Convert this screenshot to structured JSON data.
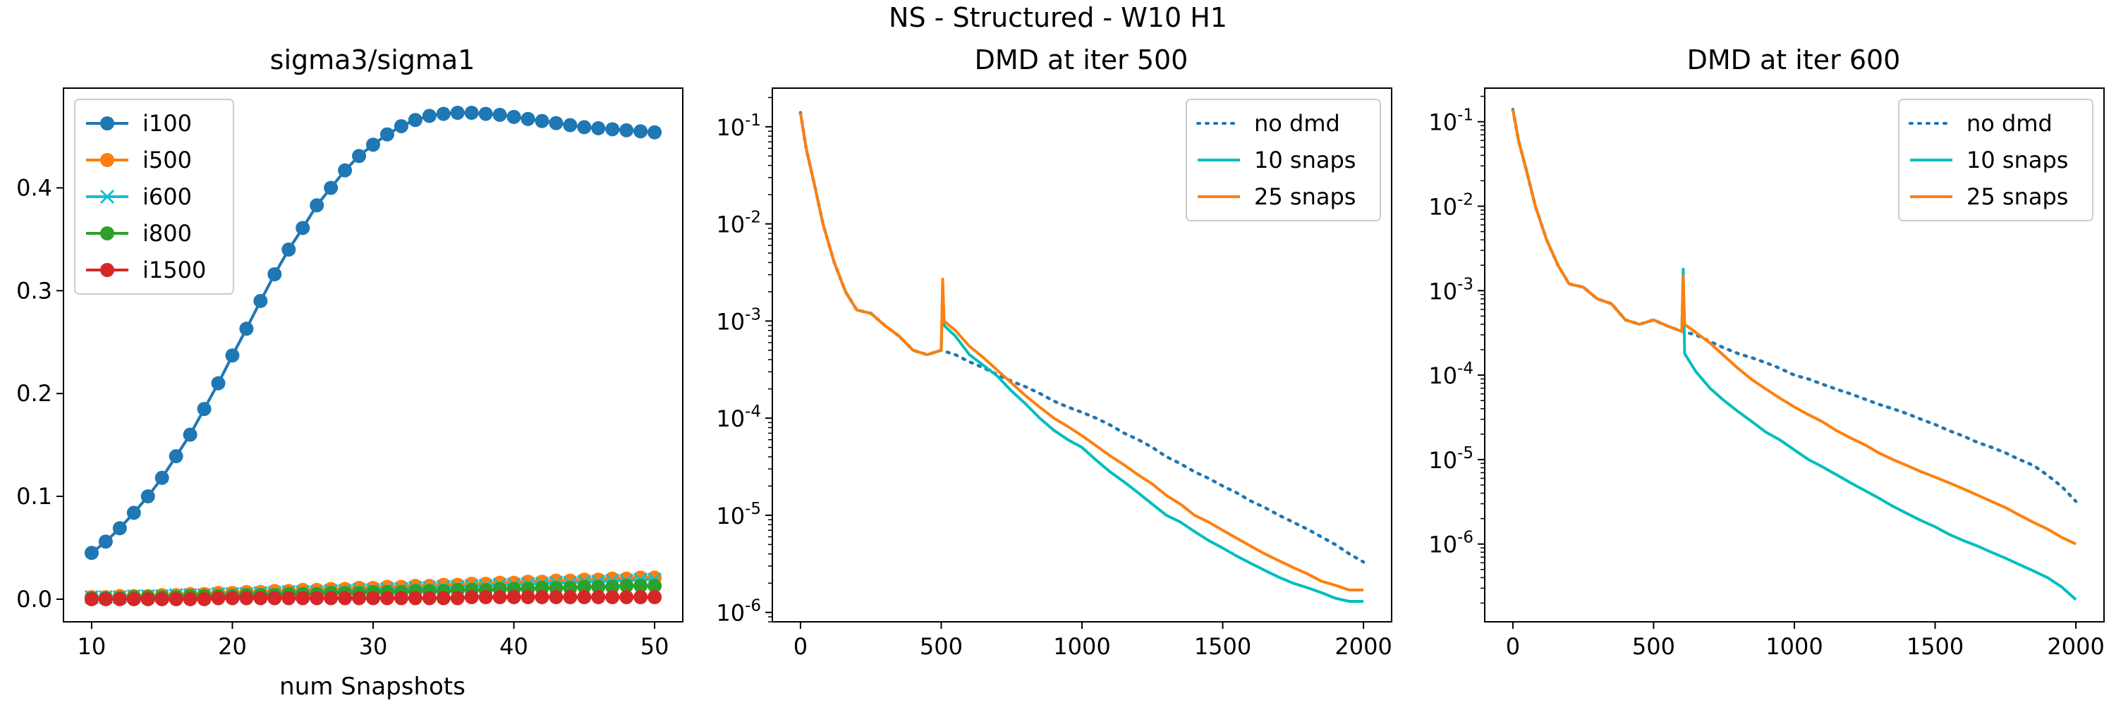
{
  "figure": {
    "suptitle": "NS - Structured - W10 H1"
  },
  "colors": {
    "blue": "#1f77b4",
    "orange": "#ff7f0e",
    "cyan": "#17becf",
    "green": "#2ca02c",
    "red": "#d62728",
    "teal": "#00bebe"
  },
  "chart_data": [
    {
      "type": "line",
      "title": "sigma3/sigma1",
      "xlabel": "num Snapshots",
      "ylabel": "",
      "xlim": [
        8,
        52
      ],
      "ylim": [
        -0.022,
        0.497
      ],
      "xticks": [
        10,
        20,
        30,
        40,
        50
      ],
      "yticks": [
        0.0,
        0.1,
        0.2,
        0.3,
        0.4
      ],
      "grid": false,
      "legend_position": "top-left",
      "x": [
        10,
        11,
        12,
        13,
        14,
        15,
        16,
        17,
        18,
        19,
        20,
        21,
        22,
        23,
        24,
        25,
        26,
        27,
        28,
        29,
        30,
        31,
        32,
        33,
        34,
        35,
        36,
        37,
        38,
        39,
        40,
        41,
        42,
        43,
        44,
        45,
        46,
        47,
        48,
        49,
        50
      ],
      "series": [
        {
          "name": "i100",
          "color": "blue",
          "marker": "circle",
          "values": [
            0.045,
            0.056,
            0.069,
            0.084,
            0.1,
            0.118,
            0.139,
            0.16,
            0.185,
            0.21,
            0.237,
            0.263,
            0.29,
            0.316,
            0.34,
            0.361,
            0.383,
            0.4,
            0.417,
            0.431,
            0.442,
            0.452,
            0.46,
            0.466,
            0.47,
            0.472,
            0.473,
            0.473,
            0.472,
            0.471,
            0.469,
            0.467,
            0.465,
            0.463,
            0.461,
            0.459,
            0.458,
            0.457,
            0.456,
            0.455,
            0.454
          ]
        },
        {
          "name": "i500",
          "color": "orange",
          "marker": "circle",
          "values": [
            0.002,
            0.002,
            0.003,
            0.003,
            0.003,
            0.004,
            0.004,
            0.005,
            0.005,
            0.006,
            0.006,
            0.007,
            0.007,
            0.008,
            0.008,
            0.009,
            0.009,
            0.01,
            0.01,
            0.011,
            0.011,
            0.012,
            0.012,
            0.013,
            0.013,
            0.014,
            0.014,
            0.015,
            0.015,
            0.016,
            0.016,
            0.017,
            0.017,
            0.018,
            0.018,
            0.019,
            0.019,
            0.02,
            0.02,
            0.021,
            0.021
          ]
        },
        {
          "name": "i600",
          "color": "cyan",
          "marker": "x",
          "values": [
            0.002,
            0.002,
            0.002,
            0.003,
            0.003,
            0.003,
            0.004,
            0.004,
            0.004,
            0.005,
            0.005,
            0.005,
            0.006,
            0.006,
            0.007,
            0.007,
            0.007,
            0.008,
            0.008,
            0.009,
            0.009,
            0.01,
            0.01,
            0.011,
            0.011,
            0.012,
            0.012,
            0.013,
            0.013,
            0.014,
            0.014,
            0.015,
            0.015,
            0.016,
            0.016,
            0.017,
            0.017,
            0.018,
            0.018,
            0.019,
            0.019
          ]
        },
        {
          "name": "i800",
          "color": "green",
          "marker": "circle",
          "values": [
            0.001,
            0.001,
            0.001,
            0.002,
            0.002,
            0.002,
            0.002,
            0.003,
            0.003,
            0.003,
            0.003,
            0.004,
            0.004,
            0.004,
            0.005,
            0.005,
            0.005,
            0.006,
            0.006,
            0.006,
            0.007,
            0.007,
            0.007,
            0.008,
            0.008,
            0.008,
            0.009,
            0.009,
            0.009,
            0.01,
            0.01,
            0.01,
            0.011,
            0.011,
            0.011,
            0.012,
            0.012,
            0.012,
            0.013,
            0.013,
            0.013
          ]
        },
        {
          "name": "i1500",
          "color": "red",
          "marker": "circle",
          "values": [
            0.0,
            0.0,
            0.0,
            0.0,
            0.0,
            0.0,
            0.0,
            0.0,
            0.0,
            0.001,
            0.001,
            0.001,
            0.001,
            0.001,
            0.001,
            0.001,
            0.001,
            0.001,
            0.001,
            0.001,
            0.001,
            0.001,
            0.001,
            0.001,
            0.001,
            0.001,
            0.001,
            0.002,
            0.002,
            0.002,
            0.002,
            0.002,
            0.002,
            0.002,
            0.002,
            0.002,
            0.002,
            0.002,
            0.002,
            0.002,
            0.002
          ]
        }
      ]
    },
    {
      "type": "line",
      "title": "DMD at iter 500",
      "xlabel": "",
      "ylabel": "",
      "xlim": [
        -100,
        2100
      ],
      "ylim": [
        8e-07,
        0.25
      ],
      "yscale": "log",
      "xticks": [
        0,
        500,
        1000,
        1500,
        2000
      ],
      "yticks": [
        {
          "base": "10",
          "exp": "-1",
          "value": 0.1
        },
        {
          "base": "10",
          "exp": "-2",
          "value": 0.01
        },
        {
          "base": "10",
          "exp": "-3",
          "value": 0.001
        },
        {
          "base": "10",
          "exp": "-4",
          "value": 0.0001
        },
        {
          "base": "10",
          "exp": "-5",
          "value": 1e-05
        },
        {
          "base": "10",
          "exp": "-6",
          "value": 1e-06
        }
      ],
      "grid": false,
      "legend_position": "top-right",
      "series": [
        {
          "name": "no dmd",
          "color": "blue",
          "style": "dotted",
          "x": [
            0,
            20,
            50,
            80,
            120,
            160,
            200,
            250,
            300,
            350,
            400,
            450,
            500,
            550,
            600,
            650,
            700,
            750,
            800,
            850,
            900,
            950,
            1000,
            1050,
            1100,
            1150,
            1200,
            1250,
            1300,
            1350,
            1400,
            1450,
            1500,
            1550,
            1600,
            1650,
            1700,
            1750,
            1800,
            1850,
            1900,
            1950,
            2000
          ],
          "y": [
            0.14,
            0.06,
            0.025,
            0.01,
            0.004,
            0.002,
            0.0013,
            0.0012,
            0.0009,
            0.0007,
            0.0005,
            0.00045,
            0.0005,
            0.00045,
            0.00038,
            0.00033,
            0.00028,
            0.00024,
            0.00021,
            0.00018,
            0.00015,
            0.00013,
            0.000115,
            0.0001,
            8.5e-05,
            7e-05,
            6e-05,
            5e-05,
            4e-05,
            3.4e-05,
            2.8e-05,
            2.4e-05,
            2e-05,
            1.7e-05,
            1.4e-05,
            1.2e-05,
            1e-05,
            8.5e-06,
            7.2e-06,
            6e-06,
            5e-06,
            4e-06,
            3.3e-06
          ]
        },
        {
          "name": "10 snaps",
          "color": "teal",
          "style": "solid",
          "x": [
            0,
            20,
            50,
            80,
            120,
            160,
            200,
            250,
            300,
            350,
            400,
            450,
            500,
            505,
            510,
            550,
            600,
            650,
            700,
            750,
            800,
            850,
            900,
            950,
            1000,
            1050,
            1100,
            1150,
            1200,
            1250,
            1300,
            1350,
            1400,
            1450,
            1500,
            1550,
            1600,
            1650,
            1700,
            1750,
            1800,
            1850,
            1900,
            1950,
            2000
          ],
          "y": [
            0.14,
            0.06,
            0.025,
            0.01,
            0.004,
            0.002,
            0.0013,
            0.0012,
            0.0009,
            0.0007,
            0.0005,
            0.00045,
            0.0005,
            0.0025,
            0.0009,
            0.0007,
            0.00045,
            0.00035,
            0.00027,
            0.00019,
            0.00014,
            0.0001,
            7.5e-05,
            6e-05,
            5e-05,
            3.7e-05,
            2.8e-05,
            2.2e-05,
            1.7e-05,
            1.3e-05,
            1e-05,
            8.5e-06,
            6.8e-06,
            5.5e-06,
            4.6e-06,
            3.8e-06,
            3.2e-06,
            2.7e-06,
            2.3e-06,
            2e-06,
            1.8e-06,
            1.6e-06,
            1.4e-06,
            1.3e-06,
            1.3e-06
          ]
        },
        {
          "name": "25 snaps",
          "color": "orange",
          "style": "solid",
          "x": [
            0,
            20,
            50,
            80,
            120,
            160,
            200,
            250,
            300,
            350,
            400,
            450,
            500,
            505,
            510,
            550,
            600,
            650,
            700,
            750,
            800,
            850,
            900,
            950,
            1000,
            1050,
            1100,
            1150,
            1200,
            1250,
            1300,
            1350,
            1400,
            1450,
            1500,
            1550,
            1600,
            1650,
            1700,
            1750,
            1800,
            1850,
            1900,
            1950,
            2000
          ],
          "y": [
            0.14,
            0.06,
            0.025,
            0.01,
            0.004,
            0.002,
            0.0013,
            0.0012,
            0.0009,
            0.0007,
            0.0005,
            0.00045,
            0.0005,
            0.0027,
            0.001,
            0.0008,
            0.00055,
            0.00042,
            0.00031,
            0.00023,
            0.00017,
            0.00013,
            0.0001,
            8.2e-05,
            6.6e-05,
            5.2e-05,
            4.1e-05,
            3.3e-05,
            2.6e-05,
            2.1e-05,
            1.6e-05,
            1.3e-05,
            1e-05,
            8.5e-06,
            7e-06,
            5.8e-06,
            4.8e-06,
            4e-06,
            3.4e-06,
            2.9e-06,
            2.5e-06,
            2.1e-06,
            1.9e-06,
            1.7e-06,
            1.7e-06
          ]
        }
      ]
    },
    {
      "type": "line",
      "title": "DMD at iter 600",
      "xlabel": "",
      "ylabel": "",
      "xlim": [
        -100,
        2100
      ],
      "ylim": [
        1.2e-07,
        0.25
      ],
      "yscale": "log",
      "xticks": [
        0,
        500,
        1000,
        1500,
        2000
      ],
      "yticks": [
        {
          "base": "10",
          "exp": "-1",
          "value": 0.1
        },
        {
          "base": "10",
          "exp": "-2",
          "value": 0.01
        },
        {
          "base": "10",
          "exp": "-3",
          "value": 0.001
        },
        {
          "base": "10",
          "exp": "-4",
          "value": 0.0001
        },
        {
          "base": "10",
          "exp": "-5",
          "value": 1e-05
        },
        {
          "base": "10",
          "exp": "-6",
          "value": 1e-06
        }
      ],
      "grid": false,
      "legend_position": "top-right",
      "series": [
        {
          "name": "no dmd",
          "color": "blue",
          "style": "dotted",
          "x": [
            0,
            20,
            50,
            80,
            120,
            160,
            200,
            250,
            300,
            350,
            400,
            450,
            500,
            550,
            600,
            650,
            700,
            750,
            800,
            850,
            900,
            950,
            1000,
            1050,
            1100,
            1150,
            1200,
            1250,
            1300,
            1350,
            1400,
            1450,
            1500,
            1550,
            1600,
            1650,
            1700,
            1750,
            1800,
            1850,
            1900,
            1950,
            2000
          ],
          "y": [
            0.14,
            0.06,
            0.025,
            0.01,
            0.004,
            0.002,
            0.0012,
            0.0011,
            0.0008,
            0.0007,
            0.00045,
            0.0004,
            0.00045,
            0.00038,
            0.00033,
            0.0003,
            0.00025,
            0.00021,
            0.00018,
            0.00016,
            0.00014,
            0.00012,
            0.0001,
            9e-05,
            7.8e-05,
            6.8e-05,
            6e-05,
            5.2e-05,
            4.5e-05,
            4e-05,
            3.5e-05,
            3e-05,
            2.6e-05,
            2.2e-05,
            1.9e-05,
            1.6e-05,
            1.4e-05,
            1.2e-05,
            1e-05,
            8.5e-06,
            6.5e-06,
            4.8e-06,
            3.2e-06
          ]
        },
        {
          "name": "10 snaps",
          "color": "teal",
          "style": "solid",
          "x": [
            0,
            20,
            50,
            80,
            120,
            160,
            200,
            250,
            300,
            350,
            400,
            450,
            500,
            550,
            600,
            605,
            610,
            650,
            700,
            750,
            800,
            850,
            900,
            950,
            1000,
            1050,
            1100,
            1150,
            1200,
            1250,
            1300,
            1350,
            1400,
            1450,
            1500,
            1550,
            1600,
            1650,
            1700,
            1750,
            1800,
            1850,
            1900,
            1950,
            2000
          ],
          "y": [
            0.14,
            0.06,
            0.025,
            0.01,
            0.004,
            0.002,
            0.0012,
            0.0011,
            0.0008,
            0.0007,
            0.00045,
            0.0004,
            0.00045,
            0.00038,
            0.00033,
            0.0018,
            0.00018,
            0.00011,
            7e-05,
            5e-05,
            3.7e-05,
            2.8e-05,
            2.1e-05,
            1.7e-05,
            1.3e-05,
            1e-05,
            8.2e-06,
            6.6e-06,
            5.3e-06,
            4.3e-06,
            3.5e-06,
            2.8e-06,
            2.3e-06,
            1.9e-06,
            1.6e-06,
            1.3e-06,
            1.1e-06,
            9.5e-07,
            8e-07,
            6.8e-07,
            5.7e-07,
            4.8e-07,
            4e-07,
            3.1e-07,
            2.2e-07
          ]
        },
        {
          "name": "25 snaps",
          "color": "orange",
          "style": "solid",
          "x": [
            0,
            20,
            50,
            80,
            120,
            160,
            200,
            250,
            300,
            350,
            400,
            450,
            500,
            550,
            600,
            605,
            610,
            650,
            700,
            750,
            800,
            850,
            900,
            950,
            1000,
            1050,
            1100,
            1150,
            1200,
            1250,
            1300,
            1350,
            1400,
            1450,
            1500,
            1550,
            1600,
            1650,
            1700,
            1750,
            1800,
            1850,
            1900,
            1950,
            2000
          ],
          "y": [
            0.14,
            0.06,
            0.025,
            0.01,
            0.004,
            0.002,
            0.0012,
            0.0011,
            0.0008,
            0.0007,
            0.00045,
            0.0004,
            0.00045,
            0.00038,
            0.00033,
            0.0015,
            0.0004,
            0.00032,
            0.00024,
            0.00017,
            0.00012,
            8.8e-05,
            6.8e-05,
            5.3e-05,
            4.2e-05,
            3.4e-05,
            2.8e-05,
            2.2e-05,
            1.8e-05,
            1.5e-05,
            1.2e-05,
            1e-05,
            8.5e-06,
            7.2e-06,
            6.2e-06,
            5.3e-06,
            4.5e-06,
            3.8e-06,
            3.2e-06,
            2.7e-06,
            2.2e-06,
            1.8e-06,
            1.5e-06,
            1.2e-06,
            1e-06
          ]
        }
      ]
    }
  ]
}
